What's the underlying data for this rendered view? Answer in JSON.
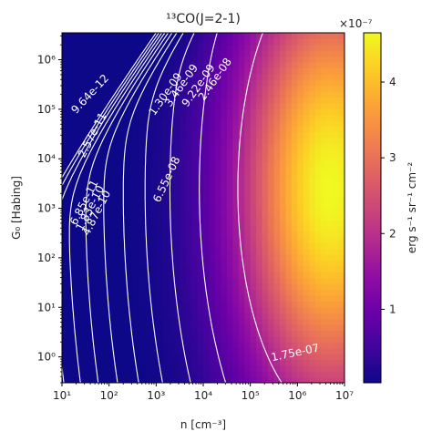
{
  "chart_data": {
    "type": "heatmap",
    "title": "¹³CO(J=2-1)",
    "xlabel": "n [cm⁻³]",
    "ylabel": "G₀ [Habing]",
    "x_scale": "log",
    "y_scale": "log",
    "xlim": [
      10,
      10000000
    ],
    "ylim": [
      0.3,
      3500000
    ],
    "x_ticks": [
      10,
      100,
      1000,
      10000,
      100000,
      1000000,
      10000000
    ],
    "x_tick_labels": [
      "10¹",
      "10²",
      "10³",
      "10⁴",
      "10⁵",
      "10⁶",
      "10⁷"
    ],
    "y_ticks": [
      1,
      10,
      100,
      1000,
      10000,
      100000,
      1000000
    ],
    "y_tick_labels": [
      "10⁰",
      "10¹",
      "10²",
      "10³",
      "10⁴",
      "10⁵",
      "10⁶"
    ],
    "colormap": "plasma",
    "colorbar": {
      "label": "erg s⁻¹ sr⁻¹ cm⁻²",
      "multiplier": "×10⁻⁷",
      "range": [
        3e-09,
        4.65e-07
      ],
      "ticks": [
        1,
        2,
        3,
        4
      ],
      "tick_labels": [
        "1",
        "2",
        "3",
        "4"
      ]
    },
    "peak": {
      "n": 5000000,
      "G0": 2500,
      "value": 4.65e-07
    },
    "contour_labels": [
      "9.64e-12",
      "2.57e-11",
      "6.85e-11",
      "1.83e-10",
      "4.87e-10",
      "1.30e-09",
      "3.46e-09",
      "9.22e-09",
      "2.46e-08",
      "6.55e-08",
      "1.75e-07"
    ],
    "grid": false,
    "legend": "none"
  }
}
